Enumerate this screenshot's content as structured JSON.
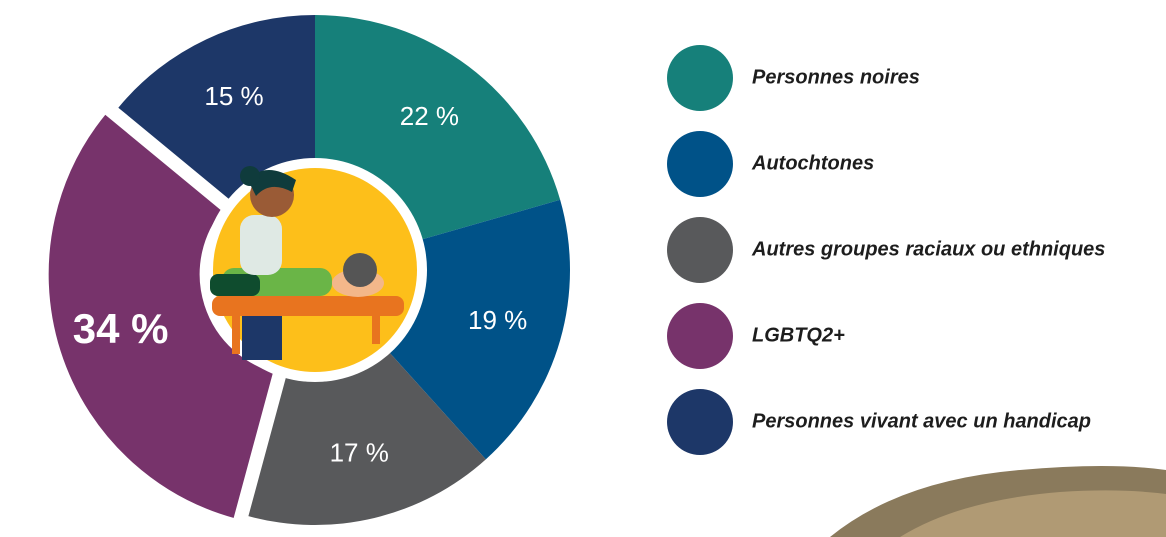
{
  "chart_data": {
    "type": "donut",
    "categories": [
      "Personnes noires",
      "Autochtones",
      "Autres groupes raciaux ou ethniques",
      "LGBTQ2+",
      "Personnes vivant avec un handicap"
    ],
    "values": [
      22,
      19,
      17,
      34,
      15
    ],
    "value_labels": [
      "22 %",
      "19 %",
      "17 %",
      "34 %",
      "15 %"
    ],
    "colors": [
      "#16807a",
      "#005288",
      "#58595b",
      "#77336b",
      "#1d3768"
    ],
    "exploded": [
      false,
      false,
      false,
      true,
      false
    ],
    "legend": "right"
  }
}
